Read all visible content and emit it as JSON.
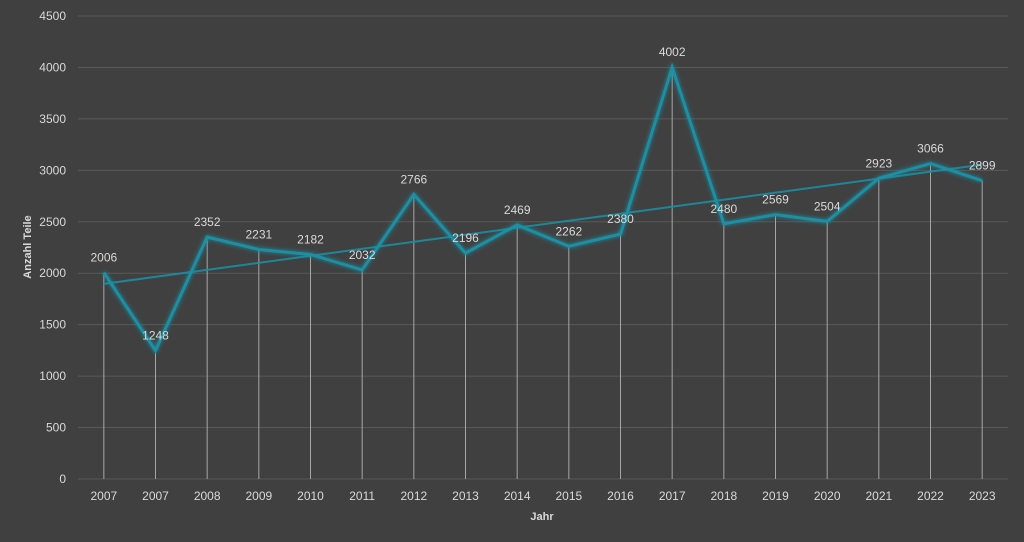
{
  "chart_data": {
    "type": "line",
    "categories": [
      "2007",
      "2007",
      "2008",
      "2009",
      "2010",
      "2011",
      "2012",
      "2013",
      "2014",
      "2015",
      "2016",
      "2017",
      "2018",
      "2019",
      "2020",
      "2021",
      "2022",
      "2023"
    ],
    "series": [
      {
        "values": [
          2006,
          1248,
          2352,
          2231,
          2182,
          2032,
          2766,
          2196,
          2469,
          2262,
          2380,
          4002,
          2480,
          2569,
          2504,
          2923,
          3066,
          2899
        ],
        "color": "#1a8fa3",
        "data_labels": true,
        "drop_lines": true
      }
    ],
    "trendline": {
      "type": "linear"
    },
    "xlabel": "Jahr",
    "ylabel": "Anzahl Teile",
    "ylim": [
      0,
      4500
    ],
    "yticks": [
      0,
      500,
      1000,
      1500,
      2000,
      2500,
      3000,
      3500,
      4000,
      4500
    ],
    "grid": true,
    "legend": "none",
    "colors": {
      "background": "#404040",
      "gridline": "#595959",
      "drop_line": "#a6a6a6",
      "text": "#d9d9d9",
      "line": "#1a8fa3",
      "trendline": "#1a8fa3"
    }
  }
}
